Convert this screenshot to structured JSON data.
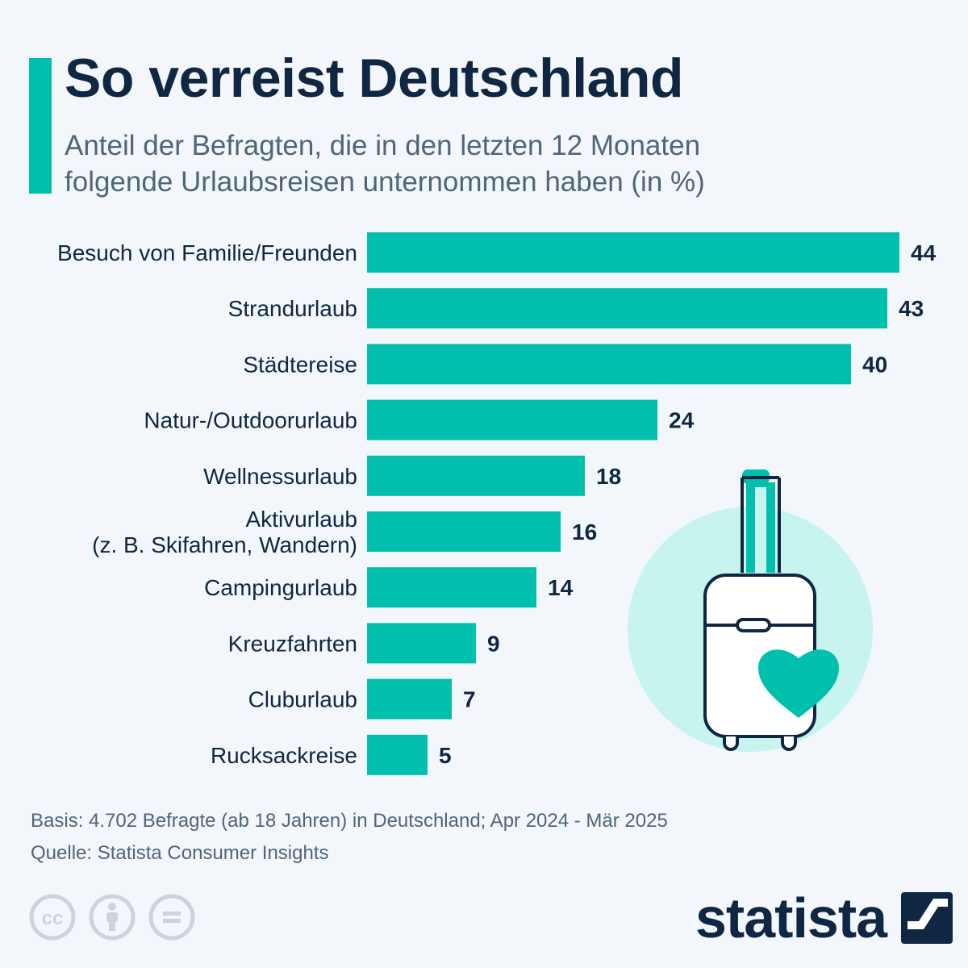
{
  "header": {
    "title": "So verreist Deutschland",
    "subtitle_lines": [
      "Anteil der Befragten, die in den letzten 12 Monaten",
      "folgende Urlaubsreisen unternommen haben (in %)"
    ]
  },
  "chart_data": {
    "type": "bar",
    "orientation": "horizontal",
    "title": "So verreist Deutschland",
    "subtitle": "Anteil der Befragten, die in den letzten 12 Monaten folgende Urlaubsreisen unternommen haben (in %)",
    "categories": [
      [
        "Besuch von Familie/Freunden"
      ],
      [
        "Strandurlaub"
      ],
      [
        "Städtereise"
      ],
      [
        "Natur-/Outdoorurlaub"
      ],
      [
        "Wellnessurlaub"
      ],
      [
        "Aktivurlaub",
        "(z. B. Skifahren, Wandern)"
      ],
      [
        "Campingurlaub"
      ],
      [
        "Kreuzfahrten"
      ],
      [
        "Cluburlaub"
      ],
      [
        "Rucksackreise"
      ]
    ],
    "values": [
      44,
      43,
      40,
      24,
      18,
      16,
      14,
      9,
      7,
      5
    ],
    "xlabel": "",
    "ylabel": "",
    "xlim": [
      0,
      44
    ],
    "grid": false,
    "legend": "none",
    "data_labels": true,
    "bar_color": "#00bfad"
  },
  "footer": {
    "basis": "Basis: 4.702 Befragte (ab 18 Jahren) in Deutschland; Apr 2024 - Mär 2025",
    "source": "Quelle: Statista Consumer Insights"
  },
  "brand": {
    "name": "statista"
  },
  "icons": {
    "license": [
      "creative-commons-icon",
      "attribution-icon",
      "no-derivatives-icon"
    ],
    "illustration": "suitcase-heart-icon",
    "brand_logo": "statista-logo-icon"
  },
  "colors": {
    "accent": "#00bfad",
    "text_dark": "#0f2742",
    "text_muted": "#4f6578",
    "background": "#f3f7fb",
    "circle": "#c8f4f0"
  }
}
